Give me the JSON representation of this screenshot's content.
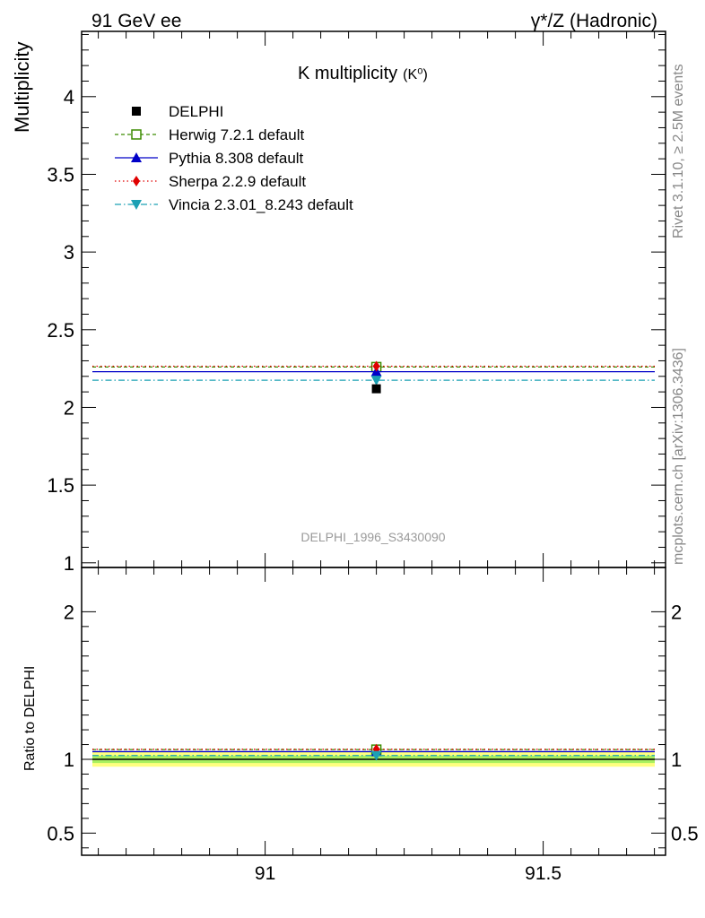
{
  "header": {
    "left_label": "91 GeV ee",
    "right_label": "γ*/Z (Hadronic)"
  },
  "side_labels": {
    "rivet": "Rivet 3.1.10, ≥ 2.5M events",
    "mcplots": "mcplots.cern.ch [arXiv:1306.3436]"
  },
  "watermark": "DELPHI_1996_S3430090",
  "chart_data": [
    {
      "type": "scatter",
      "title": "K multiplicity",
      "title_suffix": "(K⁰)",
      "ylabel": "Multiplicity",
      "xlim": [
        90.67,
        91.72
      ],
      "ylim": [
        0.97,
        4.42
      ],
      "x_ticks": [
        91,
        91.5
      ],
      "y_ticks": [
        1,
        1.5,
        2,
        2.5,
        3,
        3.5,
        4
      ],
      "y_tick_labels": [
        "1",
        "1.5",
        "2",
        "2.5",
        "3",
        "3.5",
        "4"
      ],
      "legend_position": "top-left",
      "data": {
        "name": "DELPHI",
        "x": 91.2,
        "y": 2.12,
        "color": "#000000"
      },
      "series": [
        {
          "name": "Herwig 7.2.1 default",
          "x": 91.2,
          "y": 2.26,
          "color": "#3c8c00",
          "marker": "open-square",
          "dash": "4,3"
        },
        {
          "name": "Pythia 8.308 default",
          "x": 91.2,
          "y": 2.23,
          "color": "#0000c8",
          "marker": "triangle-up",
          "dash": ""
        },
        {
          "name": "Sherpa 2.2.9 default",
          "x": 91.2,
          "y": 2.265,
          "color": "#e00000",
          "marker": "diamond",
          "dash": "1.5,3"
        },
        {
          "name": "Vincia 2.3.01_8.243 default",
          "x": 91.2,
          "y": 2.175,
          "color": "#1ca0b4",
          "marker": "triangle-down",
          "dash": "7,3,1.5,3"
        }
      ]
    },
    {
      "type": "scatter",
      "ylabel": "Ratio to DELPHI",
      "xlim": [
        90.67,
        91.72
      ],
      "ylim": [
        0.35,
        2.3
      ],
      "x_ticks": [
        91,
        91.5
      ],
      "x_tick_labels": [
        "91",
        "91.5"
      ],
      "y_ticks": [
        0.5,
        1,
        2
      ],
      "y_tick_labels": [
        "0.5",
        "1",
        "2"
      ],
      "band_outer": [
        0.95,
        1.05
      ],
      "band_inner": [
        0.975,
        1.025
      ],
      "series": [
        {
          "name": "Herwig 7.2.1 default",
          "x": 91.2,
          "y": 1.066,
          "color": "#3c8c00",
          "marker": "open-square",
          "dash": "4,3"
        },
        {
          "name": "Pythia 8.308 default",
          "x": 91.2,
          "y": 1.052,
          "color": "#0000c8",
          "marker": "triangle-up",
          "dash": ""
        },
        {
          "name": "Sherpa 2.2.9 default",
          "x": 91.2,
          "y": 1.068,
          "color": "#e00000",
          "marker": "diamond",
          "dash": "1.5,3"
        },
        {
          "name": "Vincia 2.3.01_8.243 default",
          "x": 91.2,
          "y": 1.026,
          "color": "#1ca0b4",
          "marker": "triangle-down",
          "dash": "7,3,1.5,3"
        }
      ]
    }
  ]
}
